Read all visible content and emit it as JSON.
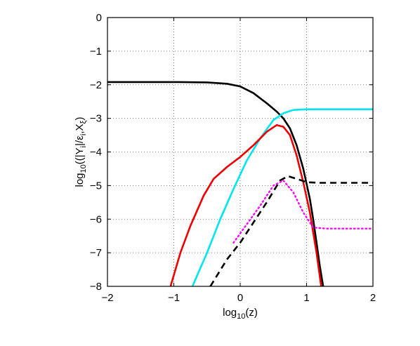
{
  "chart_data": {
    "type": "line",
    "title": "",
    "xlabel": "log10(z)",
    "ylabel": "log10((|Yi|/εi,Xξ)",
    "xlabel_parts": {
      "prefix": "log",
      "sub": "10",
      "suffix": "(z)"
    },
    "ylabel_parts": {
      "prefix": "log",
      "sub": "10",
      "open": "((|Y",
      "sub_i": "i",
      "mid": "|/ε",
      "sub_i2": "i",
      "comma": ",X",
      "sub_xi": "ξ",
      "close": ")"
    },
    "xlim": [
      -2,
      2
    ],
    "ylim": [
      -8,
      0
    ],
    "xticks": [
      -2,
      -1,
      0,
      1,
      2
    ],
    "yticks": [
      0,
      -1,
      -2,
      -3,
      -4,
      -5,
      -6,
      -7,
      -8
    ],
    "xtick_labels": [
      "−2",
      "−1",
      "0",
      "1",
      "2"
    ],
    "ytick_labels": [
      "0",
      "−1",
      "−2",
      "−3",
      "−4",
      "−5",
      "−6",
      "−7",
      "−8"
    ],
    "grid": true,
    "legend": "none",
    "series": [
      {
        "color": "#000000",
        "style": "solid",
        "points": [
          [
            -2,
            -1.92
          ],
          [
            -1,
            -1.92
          ],
          [
            -0.5,
            -1.93
          ],
          [
            -0.2,
            -1.97
          ],
          [
            0,
            -2.05
          ],
          [
            0.2,
            -2.25
          ],
          [
            0.4,
            -2.55
          ],
          [
            0.55,
            -2.8
          ],
          [
            0.65,
            -3.0
          ],
          [
            0.75,
            -3.3
          ],
          [
            0.85,
            -3.8
          ],
          [
            0.95,
            -4.5
          ],
          [
            1.05,
            -5.4
          ],
          [
            1.1,
            -6.0
          ],
          [
            1.15,
            -6.7
          ],
          [
            1.2,
            -7.4
          ],
          [
            1.25,
            -8.0
          ]
        ]
      },
      {
        "color": "#00e5ee",
        "style": "solid",
        "points": [
          [
            -0.72,
            -8.0
          ],
          [
            -0.5,
            -7.0
          ],
          [
            -0.3,
            -6.0
          ],
          [
            -0.1,
            -5.1
          ],
          [
            0.1,
            -4.25
          ],
          [
            0.3,
            -3.6
          ],
          [
            0.5,
            -3.05
          ],
          [
            0.65,
            -2.85
          ],
          [
            0.8,
            -2.75
          ],
          [
            1.0,
            -2.73
          ],
          [
            2.0,
            -2.73
          ]
        ]
      },
      {
        "color": "#ee0000",
        "style": "solid",
        "points": [
          [
            -1.05,
            -8.0
          ],
          [
            -0.9,
            -7.0
          ],
          [
            -0.75,
            -6.2
          ],
          [
            -0.55,
            -5.3
          ],
          [
            -0.4,
            -4.8
          ],
          [
            -0.2,
            -4.45
          ],
          [
            0,
            -4.15
          ],
          [
            0.2,
            -3.8
          ],
          [
            0.4,
            -3.4
          ],
          [
            0.55,
            -3.2
          ],
          [
            0.65,
            -3.25
          ],
          [
            0.75,
            -3.5
          ],
          [
            0.85,
            -4.1
          ],
          [
            0.95,
            -4.9
          ],
          [
            1.05,
            -5.8
          ],
          [
            1.15,
            -7.0
          ],
          [
            1.22,
            -8.0
          ]
        ]
      },
      {
        "color": "#000000",
        "style": "dashed",
        "points": [
          [
            -0.45,
            -8.0
          ],
          [
            -0.2,
            -7.2
          ],
          [
            0,
            -6.7
          ],
          [
            0.2,
            -6.1
          ],
          [
            0.4,
            -5.5
          ],
          [
            0.6,
            -4.85
          ],
          [
            0.72,
            -4.72
          ],
          [
            0.85,
            -4.8
          ],
          [
            1.0,
            -4.9
          ],
          [
            1.2,
            -4.92
          ],
          [
            2.0,
            -4.92
          ]
        ]
      },
      {
        "color": "#ff00ff",
        "style": "dotted",
        "points": [
          [
            -0.1,
            -6.7
          ],
          [
            0.1,
            -6.15
          ],
          [
            0.3,
            -5.6
          ],
          [
            0.5,
            -5.0
          ],
          [
            0.65,
            -4.85
          ],
          [
            0.8,
            -5.2
          ],
          [
            0.95,
            -5.8
          ],
          [
            1.1,
            -6.25
          ],
          [
            1.3,
            -6.28
          ],
          [
            2.0,
            -6.28
          ]
        ]
      }
    ]
  }
}
